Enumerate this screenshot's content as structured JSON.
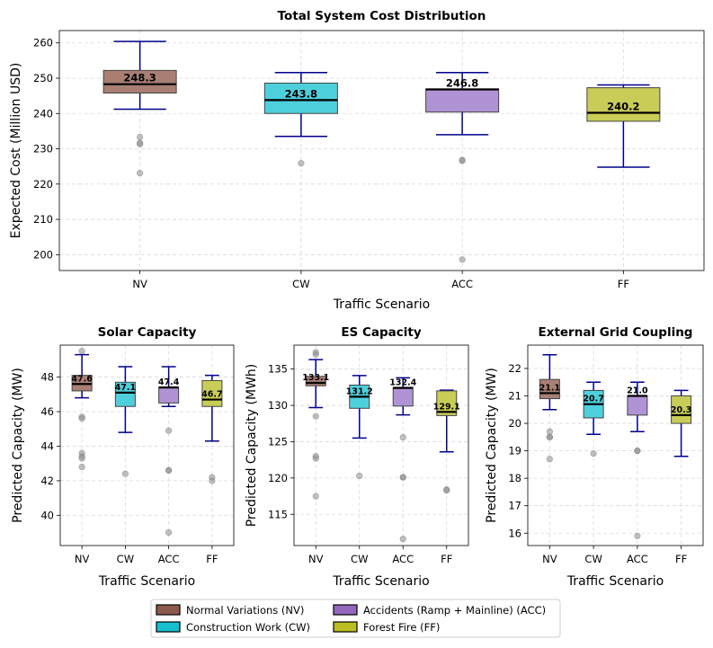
{
  "chart_data": [
    {
      "id": "cost",
      "type": "boxplot",
      "title": "Total System Cost Distribution",
      "xlabel": "Traffic Scenario",
      "ylabel": "Expected Cost (Million USD)",
      "ylim": [
        195.5,
        263.5
      ],
      "yticks": [
        200,
        210,
        220,
        230,
        240,
        250,
        260
      ],
      "ytick_labels": [
        "200",
        "210",
        "220",
        "230",
        "240",
        "250",
        "260"
      ],
      "categories": [
        "NV",
        "CW",
        "ACC",
        "FF"
      ],
      "boxes": [
        {
          "q1": 245.8,
          "q3": 252.2,
          "median": 248.3,
          "whisker_low": 241.2,
          "whisker_high": 260.4,
          "label": "248.3",
          "outliers": [
            233.3,
            231.7,
            231.3,
            223.1
          ]
        },
        {
          "q1": 240.0,
          "q3": 248.6,
          "median": 243.8,
          "whisker_low": 233.5,
          "whisker_high": 251.6,
          "label": "243.8",
          "outliers": [
            225.9
          ]
        },
        {
          "q1": 240.4,
          "q3": 247.0,
          "median": 246.8,
          "whisker_low": 234.0,
          "whisker_high": 251.6,
          "label": "246.8",
          "outliers": [
            226.8,
            226.6,
            198.6
          ]
        },
        {
          "q1": 237.8,
          "q3": 247.3,
          "median": 240.2,
          "whisker_low": 224.8,
          "whisker_high": 248.1,
          "label": "240.2",
          "outliers": []
        }
      ]
    },
    {
      "id": "solar",
      "type": "boxplot",
      "title": "Solar Capacity",
      "xlabel": "Traffic Scenario",
      "ylabel": "Predicted Capacity (MW)",
      "ylim": [
        38.25,
        49.85
      ],
      "yticks": [
        40,
        42,
        44,
        46,
        48
      ],
      "ytick_labels": [
        "40",
        "42",
        "44",
        "46",
        "48"
      ],
      "categories": [
        "NV",
        "CW",
        "ACC",
        "FF"
      ],
      "boxes": [
        {
          "q1": 47.2,
          "q3": 48.1,
          "median": 47.6,
          "whisker_low": 46.8,
          "whisker_high": 49.3,
          "label": "47.6",
          "outliers": [
            49.5,
            45.7,
            45.6,
            43.6,
            43.4,
            43.3,
            42.8
          ]
        },
        {
          "q1": 46.3,
          "q3": 47.7,
          "median": 47.1,
          "whisker_low": 44.8,
          "whisker_high": 48.6,
          "label": "47.1",
          "outliers": [
            42.4
          ]
        },
        {
          "q1": 46.5,
          "q3": 47.4,
          "median": 47.4,
          "whisker_low": 46.3,
          "whisker_high": 48.6,
          "label": "47.4",
          "outliers": [
            44.9,
            42.6,
            42.6,
            39.0
          ]
        },
        {
          "q1": 46.3,
          "q3": 47.8,
          "median": 46.7,
          "whisker_low": 44.3,
          "whisker_high": 48.1,
          "label": "46.7",
          "outliers": [
            42.2,
            42.0
          ]
        }
      ]
    },
    {
      "id": "es",
      "type": "boxplot",
      "title": "ES Capacity",
      "xlabel": "Traffic Scenario",
      "ylabel": "Predicted Capacity (MWh)",
      "ylim": [
        110.7,
        138.3
      ],
      "yticks": [
        115,
        120,
        125,
        130,
        135
      ],
      "ytick_labels": [
        "115",
        "120",
        "125",
        "130",
        "135"
      ],
      "categories": [
        "NV",
        "CW",
        "ACC",
        "FF"
      ],
      "boxes": [
        {
          "q1": 132.7,
          "q3": 134.0,
          "median": 133.1,
          "whisker_low": 129.7,
          "whisker_high": 136.3,
          "label": "133.1",
          "outliers": [
            137.3,
            137.0,
            128.5,
            123.0,
            122.7,
            117.5
          ]
        },
        {
          "q1": 129.6,
          "q3": 132.8,
          "median": 131.2,
          "whisker_low": 125.5,
          "whisker_high": 134.1,
          "label": "131.2",
          "outliers": [
            120.3
          ]
        },
        {
          "q1": 129.9,
          "q3": 132.5,
          "median": 132.4,
          "whisker_low": 128.7,
          "whisker_high": 133.8,
          "label": "132.4",
          "outliers": [
            125.6,
            120.1,
            120.1,
            111.6
          ]
        },
        {
          "q1": 128.6,
          "q3": 132.0,
          "median": 129.1,
          "whisker_low": 123.6,
          "whisker_high": 132.1,
          "label": "129.1",
          "outliers": [
            118.4,
            118.3
          ]
        }
      ]
    },
    {
      "id": "grid",
      "type": "boxplot",
      "title": "External Grid Coupling",
      "xlabel": "Traffic Scenario",
      "ylabel": "Predicted Capacity (MW)",
      "ylim": [
        15.55,
        22.85
      ],
      "yticks": [
        16,
        17,
        18,
        19,
        20,
        21,
        22
      ],
      "ytick_labels": [
        "16",
        "17",
        "18",
        "19",
        "20",
        "21",
        "22"
      ],
      "categories": [
        "NV",
        "CW",
        "ACC",
        "FF"
      ],
      "boxes": [
        {
          "q1": 20.9,
          "q3": 21.6,
          "median": 21.1,
          "whisker_low": 20.5,
          "whisker_high": 22.5,
          "label": "21.1",
          "outliers": [
            19.7,
            19.5,
            19.5,
            18.7
          ]
        },
        {
          "q1": 20.2,
          "q3": 21.2,
          "median": 20.7,
          "whisker_low": 19.6,
          "whisker_high": 21.5,
          "label": "20.7",
          "outliers": [
            18.9
          ]
        },
        {
          "q1": 20.3,
          "q3": 21.0,
          "median": 21.0,
          "whisker_low": 19.7,
          "whisker_high": 21.5,
          "label": "21.0",
          "outliers": [
            19.0,
            19.0,
            15.9
          ]
        },
        {
          "q1": 20.0,
          "q3": 21.0,
          "median": 20.3,
          "whisker_low": 18.8,
          "whisker_high": 21.2,
          "label": "20.3",
          "outliers": []
        }
      ]
    }
  ],
  "colors": {
    "box_fills": [
      "#a97f74",
      "#4dd0dc",
      "#b093d4",
      "#c9cd57"
    ],
    "whisker": "#00008b",
    "median": "#000000",
    "outlier": "#8c8c8c",
    "grid": "#d9d9d9"
  },
  "legend": {
    "items": [
      {
        "label": "Normal Variations (NV)",
        "color": "#8c5a4c"
      },
      {
        "label": "Accidents (Ramp + Mainline) (ACC)",
        "color": "#9467bd"
      },
      {
        "label": "Construction Work (CW)",
        "color": "#17becf"
      },
      {
        "label": "Forest Fire (FF)",
        "color": "#bcbd22"
      }
    ]
  }
}
